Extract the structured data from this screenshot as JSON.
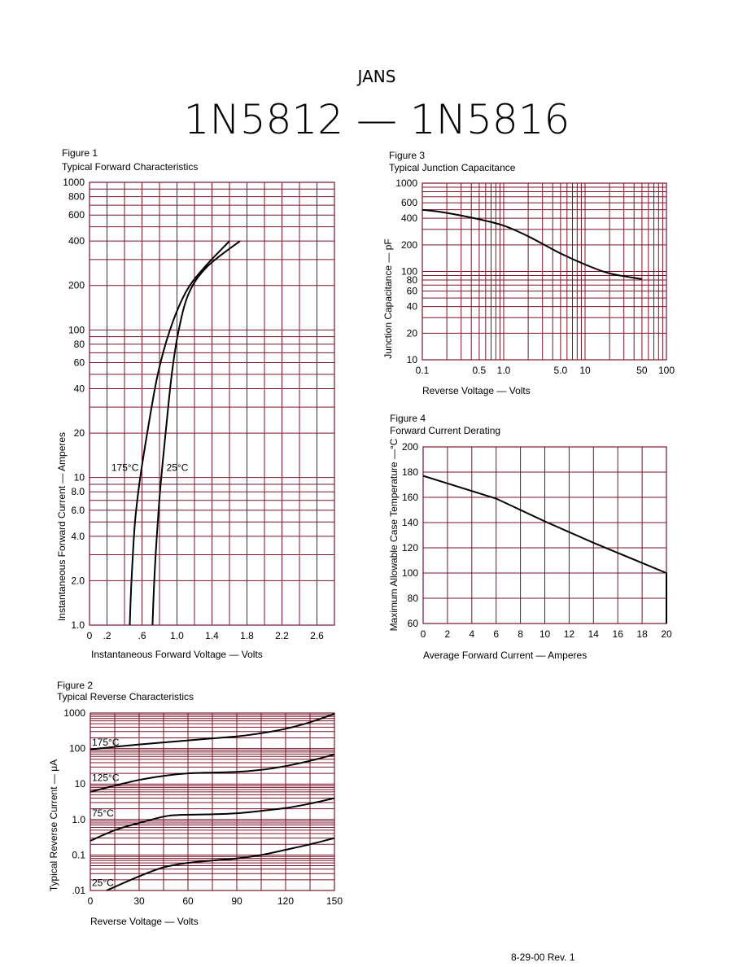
{
  "header": {
    "subtitle": "JANS",
    "title": "1N5812  —  1N5816",
    "footer": "8-29-00   Rev. 1"
  },
  "colors": {
    "grid": "#7a1328",
    "curve": "#000000"
  },
  "chart_data": [
    {
      "id": "fig1",
      "type": "line",
      "figure_label": "Figure 1",
      "title": "Typical Forward Characteristics",
      "xlabel": "Instantaneous Forward Voltage — Volts",
      "ylabel": "Instantaneous Forward Current — Amperes",
      "xscale": "linear",
      "yscale": "log",
      "xlim": [
        0,
        2.8
      ],
      "ylim": [
        1,
        1000
      ],
      "xticks": [
        0,
        0.2,
        0.6,
        1.0,
        1.4,
        1.8,
        2.2,
        2.6
      ],
      "xtick_labels": [
        "0",
        ".2",
        ".6",
        "1.0",
        "1.4",
        "1.8",
        "2.2",
        "2.6"
      ],
      "yticks": [
        1,
        2,
        4,
        6,
        8,
        10,
        20,
        40,
        60,
        80,
        100,
        200,
        400,
        600,
        800,
        1000
      ],
      "ytick_labels": [
        "1.0",
        "2.0",
        "4.0",
        "6.0",
        "8.0",
        "10",
        "20",
        "40",
        "60",
        "80",
        "100",
        "200",
        "400",
        "600",
        "800",
        "1000"
      ],
      "xgrid": [
        0.2,
        0.4,
        0.6,
        0.8,
        1.0,
        1.2,
        1.4,
        1.6,
        1.8,
        2.0,
        2.2,
        2.4,
        2.6
      ],
      "ygrid": [
        2,
        3,
        4,
        5,
        6,
        7,
        8,
        9,
        10,
        20,
        30,
        40,
        50,
        60,
        70,
        80,
        90,
        100,
        200,
        300,
        400,
        500,
        600,
        700,
        800,
        900
      ],
      "grid": true,
      "series": [
        {
          "name": "175°C",
          "label_at": [
            0.25,
            10.8
          ],
          "x": [
            0.46,
            0.48,
            0.52,
            0.58,
            0.66,
            0.78,
            0.92,
            1.1,
            1.3,
            1.6
          ],
          "y": [
            1,
            2,
            5,
            10,
            20,
            50,
            100,
            180,
            260,
            400
          ]
        },
        {
          "name": "25°C",
          "label_at": [
            0.88,
            10.8
          ],
          "x": [
            0.72,
            0.74,
            0.78,
            0.82,
            0.87,
            0.94,
            1.02,
            1.14,
            1.35,
            1.72
          ],
          "y": [
            1,
            2,
            5,
            10,
            20,
            50,
            100,
            180,
            270,
            400
          ]
        }
      ]
    },
    {
      "id": "fig2",
      "type": "line",
      "figure_label": "Figure 2",
      "title": "Typical Reverse Characteristics",
      "xlabel": "Reverse Voltage — Volts",
      "ylabel": "Typical Reverse Current — μA",
      "xscale": "linear",
      "yscale": "log",
      "xlim": [
        0,
        150
      ],
      "ylim": [
        0.01,
        1000
      ],
      "xticks": [
        0,
        30,
        60,
        90,
        120,
        150
      ],
      "xtick_labels": [
        "0",
        "30",
        "60",
        "90",
        "120",
        "150"
      ],
      "yticks": [
        0.01,
        0.1,
        1,
        10,
        100,
        1000
      ],
      "ytick_labels": [
        ".01",
        "0.1",
        "1.0",
        "10",
        "100",
        "1000"
      ],
      "xgrid": [
        15,
        30,
        45,
        60,
        75,
        90,
        105,
        120,
        135,
        150
      ],
      "ygrid": [
        0.02,
        0.03,
        0.04,
        0.05,
        0.06,
        0.07,
        0.08,
        0.09,
        0.1,
        0.2,
        0.3,
        0.4,
        0.5,
        0.6,
        0.7,
        0.8,
        0.9,
        1,
        2,
        3,
        4,
        5,
        6,
        7,
        8,
        9,
        10,
        20,
        30,
        40,
        50,
        60,
        70,
        80,
        90,
        100,
        200,
        300,
        400,
        500,
        600,
        700,
        800,
        900
      ],
      "grid": true,
      "series": [
        {
          "name": "175°C",
          "label_at": [
            1,
            110
          ],
          "x": [
            0,
            30,
            60,
            90,
            105,
            120,
            135,
            150
          ],
          "y": [
            95,
            130,
            170,
            220,
            270,
            360,
            550,
            950
          ]
        },
        {
          "name": "125°C",
          "label_at": [
            1,
            11
          ],
          "x": [
            0,
            15,
            30,
            45,
            60,
            90,
            105,
            120,
            135,
            150
          ],
          "y": [
            6,
            9,
            13,
            17,
            20,
            22,
            25,
            32,
            45,
            68
          ]
        },
        {
          "name": "75°C",
          "label_at": [
            1,
            1.1
          ],
          "x": [
            0,
            15,
            30,
            45,
            55,
            75,
            90,
            105,
            120,
            135,
            150
          ],
          "y": [
            0.25,
            0.5,
            0.8,
            1.2,
            1.35,
            1.4,
            1.5,
            1.75,
            2.1,
            2.8,
            4
          ]
        },
        {
          "name": "25°C",
          "label_at": [
            1,
            0.012
          ],
          "x": [
            10,
            30,
            45,
            60,
            75,
            90,
            105,
            120,
            135,
            150
          ],
          "y": [
            0.01,
            0.025,
            0.045,
            0.06,
            0.07,
            0.08,
            0.1,
            0.14,
            0.2,
            0.3
          ]
        }
      ]
    },
    {
      "id": "fig3",
      "type": "line",
      "figure_label": "Figure 3",
      "title": "Typical Junction Capacitance",
      "xlabel": "Reverse Voltage — Volts",
      "ylabel": "Junction Capacitance — pF",
      "xscale": "log",
      "yscale": "log",
      "xlim": [
        0.1,
        100
      ],
      "ylim": [
        10,
        1000
      ],
      "xticks": [
        0.1,
        0.5,
        1.0,
        5.0,
        10,
        50,
        100
      ],
      "xtick_labels": [
        "0.1",
        "0.5",
        "1.0",
        "5.0",
        "10",
        "50",
        "100"
      ],
      "yticks": [
        10,
        20,
        40,
        60,
        80,
        100,
        200,
        400,
        600,
        1000
      ],
      "ytick_labels": [
        "10",
        "20",
        "40",
        "60",
        "80",
        "100",
        "200",
        "400",
        "600",
        "1000"
      ],
      "xgrid": [
        0.2,
        0.3,
        0.4,
        0.5,
        0.6,
        0.7,
        0.8,
        0.9,
        1,
        2,
        3,
        4,
        5,
        6,
        7,
        8,
        9,
        10,
        20,
        30,
        40,
        50,
        60,
        70,
        80,
        90,
        100
      ],
      "ygrid": [
        20,
        30,
        40,
        50,
        60,
        70,
        80,
        90,
        100,
        200,
        300,
        400,
        500,
        600,
        700,
        800,
        900
      ],
      "grid": true,
      "series": [
        {
          "x": [
            0.1,
            0.2,
            0.5,
            1,
            2,
            5,
            10,
            20,
            50
          ],
          "y": [
            500,
            460,
            390,
            330,
            250,
            160,
            120,
            95,
            82
          ]
        }
      ]
    },
    {
      "id": "fig4",
      "type": "line",
      "figure_label": "Figure 4",
      "title": "Forward Current Derating",
      "xlabel": "Average Forward Current — Amperes",
      "ylabel": "Maximum Allowable Case Temperature —°C",
      "xscale": "linear",
      "yscale": "linear",
      "xlim": [
        0,
        20
      ],
      "ylim": [
        60,
        200
      ],
      "xticks": [
        0,
        2,
        4,
        6,
        8,
        10,
        12,
        14,
        16,
        18,
        20
      ],
      "xtick_labels": [
        "0",
        "2",
        "4",
        "6",
        "8",
        "10",
        "12",
        "14",
        "16",
        "18",
        "20"
      ],
      "yticks": [
        60,
        80,
        100,
        120,
        140,
        160,
        180,
        200
      ],
      "ytick_labels": [
        "60",
        "80",
        "100",
        "120",
        "140",
        "160",
        "180",
        "200"
      ],
      "xgrid": [
        2,
        4,
        6,
        8,
        10,
        12,
        14,
        16,
        18,
        20
      ],
      "ygrid": [
        80,
        100,
        120,
        140,
        160,
        180,
        200
      ],
      "grid": true,
      "series": [
        {
          "x": [
            0,
            3,
            6,
            10,
            14,
            20,
            20
          ],
          "y": [
            177,
            168,
            159,
            141,
            124,
            100,
            60
          ]
        }
      ]
    }
  ]
}
